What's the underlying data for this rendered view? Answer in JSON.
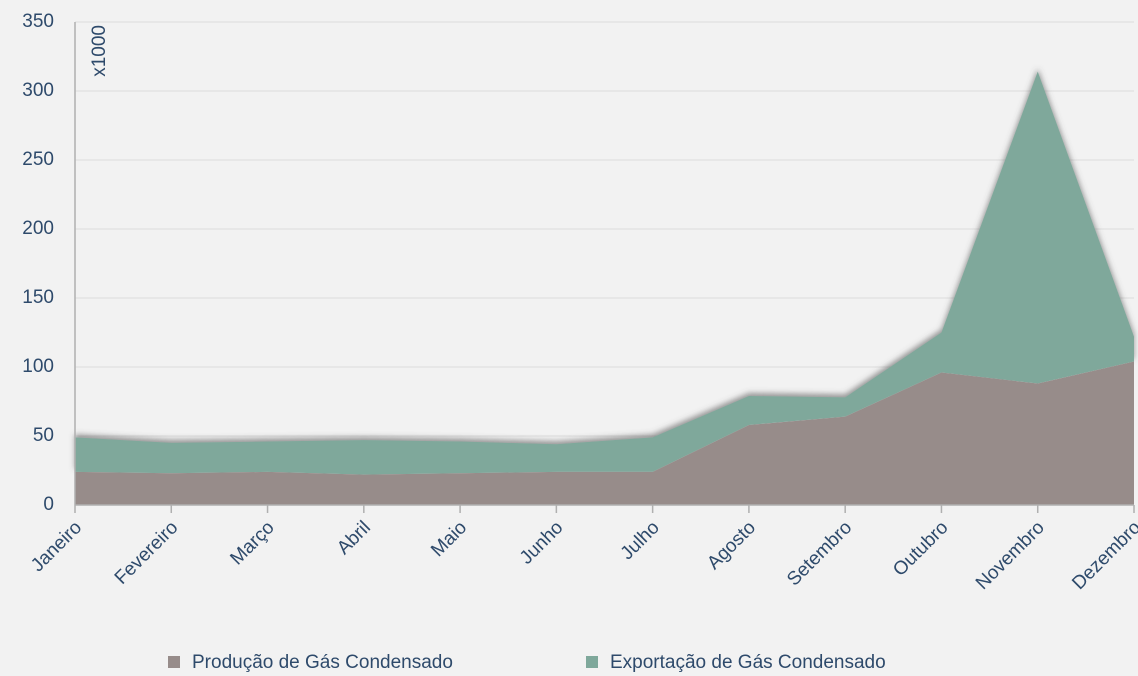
{
  "chart_data": {
    "type": "stacked_area",
    "annotation": "x1000",
    "categories": [
      "Janeiro",
      "Fevereiro",
      "Março",
      "Abril",
      "Maio",
      "Junho",
      "Julho",
      "Agosto",
      "Setembro",
      "Outubro",
      "Novembro",
      "Dezembro"
    ],
    "series": [
      {
        "name": "Produção de Gás Condensado",
        "color": "#978c8a",
        "values": [
          24,
          23,
          24,
          22,
          23,
          24,
          24,
          58,
          64,
          96,
          88,
          104
        ]
      },
      {
        "name": "Exportação de Gás Condensado",
        "color": "#7fa89b",
        "values": [
          25,
          22,
          22,
          25,
          23,
          20,
          25,
          21,
          14,
          29,
          226,
          18
        ]
      }
    ],
    "ylim": [
      0,
      350
    ],
    "yticks": [
      0,
      50,
      100,
      150,
      200,
      250,
      300,
      350
    ],
    "grid": true,
    "legend": "bottom"
  }
}
